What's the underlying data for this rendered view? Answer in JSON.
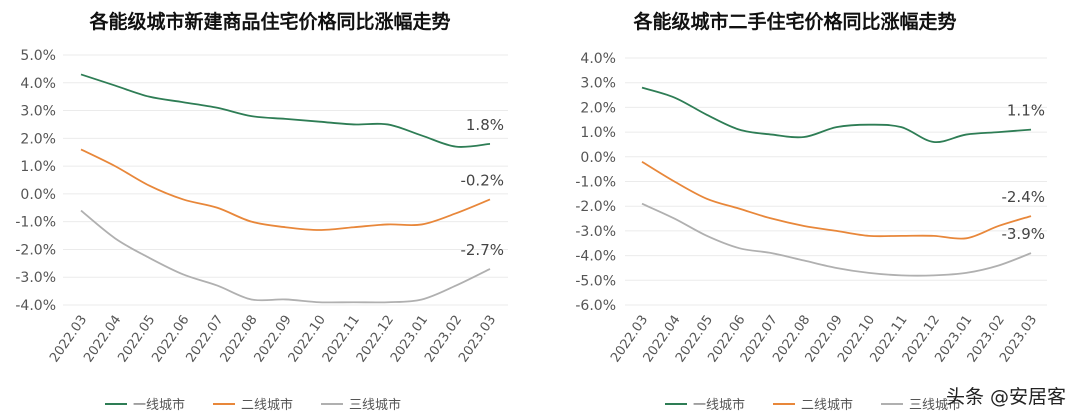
{
  "chart_data": [
    {
      "type": "line",
      "title": "各能级城市新建商品住宅价格同比涨幅走势",
      "categories": [
        "2022.03",
        "2022.04",
        "2022.05",
        "2022.06",
        "2022.07",
        "2022.08",
        "2022.09",
        "2022.10",
        "2022.11",
        "2022.12",
        "2023.01",
        "2023.02",
        "2023.03"
      ],
      "ylim": [
        -4.0,
        5.0
      ],
      "yticks": [
        "5.0%",
        "4.0%",
        "3.0%",
        "2.0%",
        "1.0%",
        "0.0%",
        "-1.0%",
        "-2.0%",
        "-3.0%",
        "-4.0%"
      ],
      "grid": true,
      "legend_placement": "bottom",
      "series": [
        {
          "name": "一线城市",
          "color": "#2e7d55",
          "values": [
            4.3,
            3.9,
            3.5,
            3.3,
            3.1,
            2.8,
            2.7,
            2.6,
            2.5,
            2.5,
            2.1,
            1.7,
            1.8
          ],
          "end_label": "1.8%"
        },
        {
          "name": "二线城市",
          "color": "#e8873a",
          "values": [
            1.6,
            1.0,
            0.3,
            -0.2,
            -0.5,
            -1.0,
            -1.2,
            -1.3,
            -1.2,
            -1.1,
            -1.1,
            -0.7,
            -0.2
          ],
          "end_label": "-0.2%"
        },
        {
          "name": "三线城市",
          "color": "#b0b0b0",
          "values": [
            -0.6,
            -1.6,
            -2.3,
            -2.9,
            -3.3,
            -3.8,
            -3.8,
            -3.9,
            -3.9,
            -3.9,
            -3.8,
            -3.3,
            -2.7
          ],
          "end_label": "-2.7%"
        }
      ]
    },
    {
      "type": "line",
      "title": "各能级城市二手住宅价格同比涨幅走势",
      "categories": [
        "2022.03",
        "2022.04",
        "2022.05",
        "2022.06",
        "2022.07",
        "2022.08",
        "2022.09",
        "2022.10",
        "2022.11",
        "2022.12",
        "2023.01",
        "2023.02",
        "2023.03"
      ],
      "ylim": [
        -6.0,
        4.0
      ],
      "yticks": [
        "4.0%",
        "3.0%",
        "2.0%",
        "1.0%",
        "0.0%",
        "-1.0%",
        "-2.0%",
        "-3.0%",
        "-4.0%",
        "-5.0%",
        "-6.0%"
      ],
      "grid": true,
      "legend_placement": "bottom",
      "series": [
        {
          "name": "一线城市",
          "color": "#2e7d55",
          "values": [
            2.8,
            2.4,
            1.7,
            1.1,
            0.9,
            0.8,
            1.2,
            1.3,
            1.2,
            0.6,
            0.9,
            1.0,
            1.1
          ],
          "end_label": "1.1%"
        },
        {
          "name": "二线城市",
          "color": "#e8873a",
          "values": [
            -0.2,
            -1.0,
            -1.7,
            -2.1,
            -2.5,
            -2.8,
            -3.0,
            -3.2,
            -3.2,
            -3.2,
            -3.3,
            -2.8,
            -2.4
          ],
          "end_label": "-2.4%"
        },
        {
          "name": "三线城市",
          "color": "#b0b0b0",
          "values": [
            -1.9,
            -2.5,
            -3.2,
            -3.7,
            -3.9,
            -4.2,
            -4.5,
            -4.7,
            -4.8,
            -4.8,
            -4.7,
            -4.4,
            -3.9
          ],
          "end_label": "-3.9%"
        }
      ]
    }
  ],
  "watermark": "头条 @安居客"
}
